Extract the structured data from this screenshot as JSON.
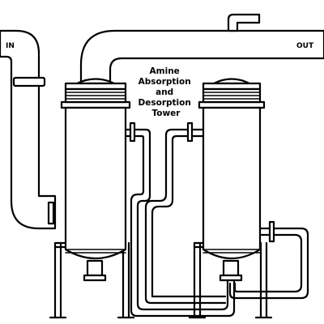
{
  "labels": {
    "inlet": "IN",
    "outlet": "OUT",
    "title_lines": [
      "Amine",
      "Absorption",
      "and",
      "Desorption",
      "Tower"
    ]
  },
  "colors": {
    "stroke": "#000000",
    "fill": "#ffffff"
  }
}
